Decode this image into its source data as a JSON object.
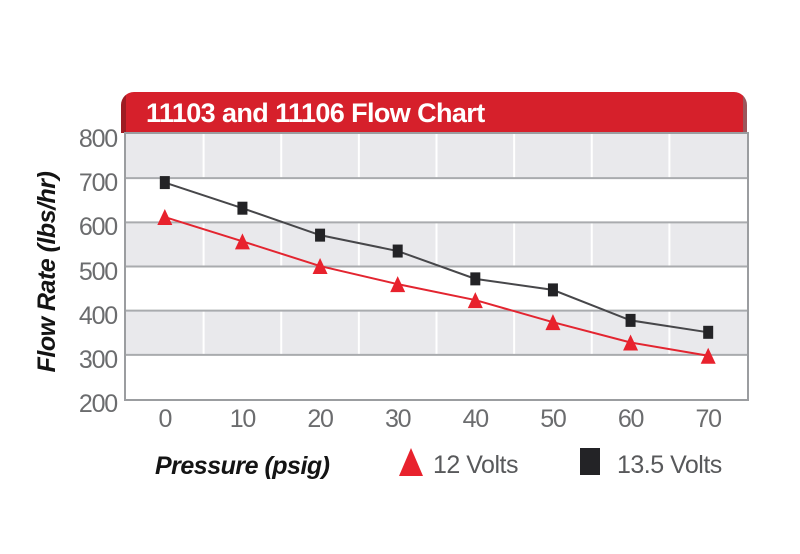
{
  "chart_data": {
    "type": "line",
    "title": "11103 and 11106 Flow Chart",
    "xlabel": "Pressure (psig)",
    "ylabel": "Flow Rate (lbs/hr)",
    "categories": [
      "0",
      "10",
      "20",
      "30",
      "40",
      "50",
      "60",
      "70"
    ],
    "series": [
      {
        "name": "12 Volts",
        "marker": "triangle",
        "color": "#e32530",
        "marker_color": "#e8222d",
        "values": [
          612,
          557,
          501,
          460,
          424,
          374,
          328,
          298
        ]
      },
      {
        "name": "13.5 Volts",
        "marker": "square",
        "color": "#47474a",
        "marker_color": "#232326",
        "values": [
          690,
          632,
          571,
          535,
          472,
          447,
          378,
          351
        ]
      }
    ],
    "ylim": [
      200,
      800
    ],
    "yticks": [
      800,
      700,
      600,
      500,
      400,
      300,
      200
    ],
    "grid": "alternating horizontal bands, white vertical gridlines",
    "legend_position": "bottom"
  },
  "colors": {
    "banner_red": "#d6202b",
    "banner_left_edge": "#9e1c23",
    "band_gray": "#e9e9ec",
    "h_gridline": "#a9abae",
    "v_gridline": "#ffffff",
    "plot_border": "#9b9da0",
    "tick_text": "#6b6c6e",
    "legend_text": "#58595b",
    "axis_title_text": "#141414",
    "page_background": "#ffffff"
  }
}
